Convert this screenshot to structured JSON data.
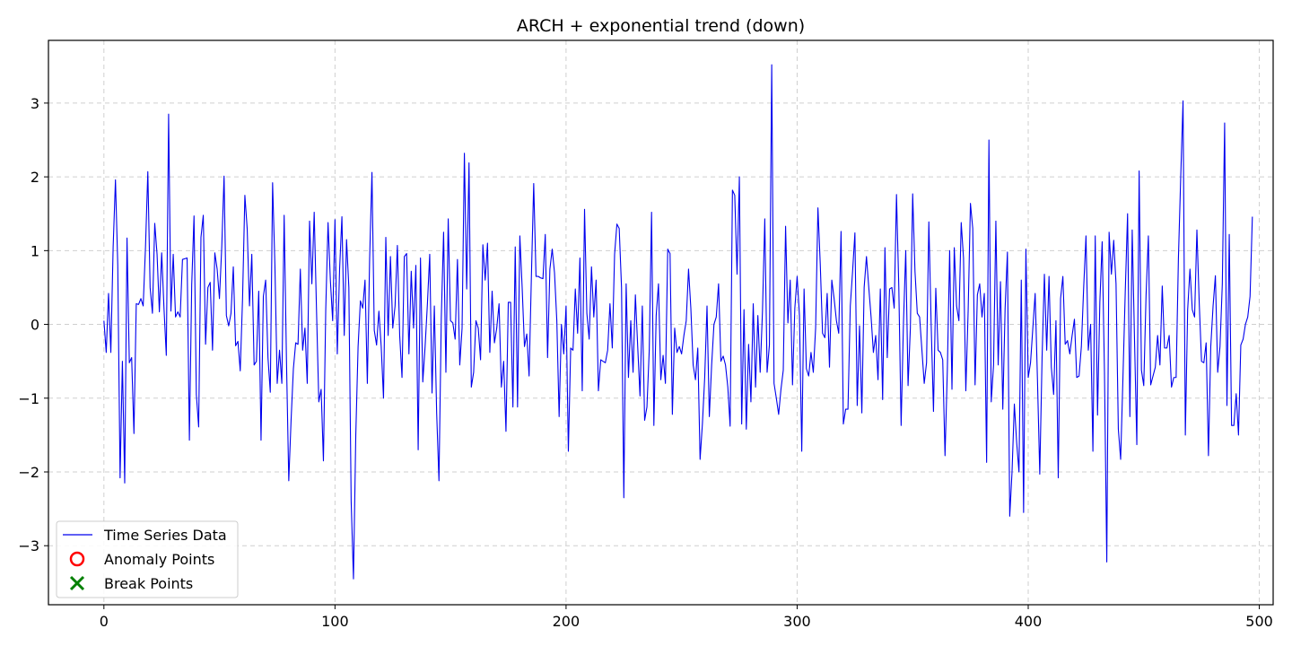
{
  "chart_data": {
    "type": "line",
    "title": "ARCH + exponential trend (down)",
    "xlabel": "",
    "ylabel": "",
    "xlim": [
      -24,
      506
    ],
    "ylim": [
      -3.8,
      3.85
    ],
    "xticks": [
      0,
      100,
      200,
      300,
      400,
      500
    ],
    "yticks": [
      -3,
      -2,
      -1,
      0,
      1,
      2,
      3
    ],
    "xtick_labels": [
      "0",
      "100",
      "200",
      "300",
      "400",
      "500"
    ],
    "ytick_labels": [
      "−3",
      "−2",
      "−1",
      "0",
      "1",
      "2",
      "3"
    ],
    "grid": true,
    "legend_position": "lower-left",
    "colors": {
      "series": "#0000ee",
      "anomaly": "#ff0000",
      "break": "#008000"
    },
    "series": [
      {
        "name": "Time Series Data",
        "y": [
          0.05,
          -0.38,
          0.42,
          -0.38,
          1.05,
          1.96,
          0.8,
          -2.08,
          -0.5,
          -2.15,
          1.17,
          -0.52,
          -0.45,
          -1.48,
          0.28,
          0.27,
          0.35,
          0.25,
          1.05,
          2.07,
          0.5,
          0.15,
          1.37,
          0.95,
          0.17,
          0.97,
          0.22,
          -0.42,
          2.85,
          0.18,
          0.95,
          0.1,
          0.17,
          0.1,
          0.88,
          0.89,
          0.9,
          -1.57,
          0.54,
          1.47,
          -0.95,
          -1.39,
          1.18,
          1.48,
          -0.27,
          0.5,
          0.57,
          -0.35,
          0.97,
          0.75,
          0.35,
          1.05,
          2.01,
          0.12,
          -0.02,
          0.15,
          0.78,
          -0.29,
          -0.23,
          -0.63,
          0.35,
          1.75,
          1.3,
          0.25,
          0.95,
          -0.55,
          -0.5,
          0.45,
          -1.57,
          0.38,
          0.6,
          -0.45,
          -0.92,
          1.92,
          0.8,
          -0.8,
          -0.35,
          -0.8,
          1.48,
          -0.48,
          -2.12,
          -1.3,
          -0.6,
          -0.25,
          -0.27,
          0.75,
          -0.35,
          -0.05,
          -0.8,
          1.4,
          0.55,
          1.52,
          0.2,
          -1.05,
          -0.88,
          -1.85,
          0.2,
          1.38,
          0.6,
          0.05,
          1.42,
          -0.4,
          0.75,
          1.46,
          -0.15,
          1.15,
          0.5,
          -2.4,
          -3.45,
          -1.5,
          -0.3,
          0.32,
          0.22,
          0.6,
          -0.8,
          0.9,
          2.06,
          -0.08,
          -0.28,
          0.18,
          -0.3,
          -1.0,
          1.18,
          -0.15,
          0.92,
          -0.05,
          0.25,
          1.07,
          -0.15,
          -0.72,
          0.92,
          0.96,
          -0.4,
          0.72,
          -0.05,
          0.8,
          -1.7,
          0.9,
          -0.78,
          -0.3,
          0.28,
          0.95,
          -0.93,
          0.25,
          -1.2,
          -2.12,
          0.08,
          1.25,
          -0.65,
          1.43,
          0.05,
          0.02,
          -0.2,
          0.88,
          -0.55,
          -0.05,
          2.32,
          0.48,
          2.19,
          -0.85,
          -0.65,
          0.05,
          -0.05,
          -0.48,
          1.08,
          0.6,
          1.1,
          -0.38,
          0.45,
          -0.25,
          -0.05,
          0.28,
          -0.85,
          -0.5,
          -1.45,
          0.3,
          0.3,
          -1.12,
          1.05,
          -1.12,
          1.2,
          0.5,
          -0.3,
          -0.13,
          -0.7,
          0.65,
          1.91,
          0.65,
          0.65,
          0.63,
          0.62,
          1.22,
          -0.45,
          0.75,
          1.02,
          0.7,
          0.05,
          -1.25,
          0.0,
          -0.4,
          0.25,
          -1.72,
          -0.32,
          -0.35,
          0.48,
          -0.12,
          0.9,
          -0.9,
          1.56,
          0.15,
          -0.2,
          0.78,
          0.1,
          0.6,
          -0.9,
          -0.48,
          -0.5,
          -0.52,
          -0.35,
          0.28,
          -0.32,
          0.95,
          1.36,
          1.3,
          0.5,
          -2.35,
          0.55,
          -0.72,
          0.05,
          -0.65,
          0.4,
          -0.3,
          -0.97,
          0.25,
          -1.3,
          -1.12,
          -0.35,
          1.52,
          -1.37,
          0.12,
          0.55,
          -0.75,
          -0.42,
          -0.8,
          1.02,
          0.96,
          -1.22,
          -0.05,
          -0.38,
          -0.3,
          -0.4,
          -0.15,
          0.05,
          0.75,
          0.22,
          -0.55,
          -0.75,
          -0.32,
          -1.83,
          -1.35,
          -0.72,
          0.25,
          -1.25,
          -0.55,
          0.0,
          0.1,
          0.55,
          -0.5,
          -0.43,
          -0.55,
          -0.85,
          -1.38,
          1.82,
          1.75,
          0.68,
          2.0,
          -1.35,
          0.2,
          -1.42,
          -0.27,
          -1.05,
          0.28,
          -0.85,
          0.12,
          -0.65,
          0.18,
          1.43,
          -0.65,
          -0.28,
          3.52,
          -0.8,
          -1.0,
          -1.22,
          -0.88,
          -0.62,
          1.33,
          0.02,
          0.6,
          -0.82,
          0.22,
          0.65,
          0.12,
          -1.72,
          0.48,
          -0.6,
          -0.7,
          -0.38,
          -0.65,
          -0.05,
          1.58,
          0.82,
          -0.12,
          -0.18,
          0.42,
          -0.58,
          0.6,
          0.35,
          0.05,
          -0.12,
          1.26,
          -1.35,
          -1.15,
          -1.15,
          0.25,
          0.72,
          1.24,
          -1.1,
          -0.02,
          -1.2,
          0.5,
          0.92,
          0.5,
          0.1,
          -0.38,
          -0.15,
          -0.75,
          0.48,
          -1.02,
          1.04,
          -0.45,
          0.48,
          0.5,
          0.22,
          1.76,
          0.5,
          -1.37,
          0.0,
          1.0,
          -0.83,
          -0.05,
          1.77,
          0.72,
          0.15,
          0.1,
          -0.35,
          -0.8,
          -0.52,
          1.39,
          0.0,
          -1.18,
          0.49,
          -0.35,
          -0.38,
          -0.48,
          -1.78,
          -0.62,
          1.0,
          -0.88,
          1.04,
          0.25,
          0.05,
          1.38,
          0.9,
          -0.9,
          0.18,
          1.64,
          1.3,
          -0.82,
          0.4,
          0.55,
          0.1,
          0.42,
          -1.87,
          2.5,
          -1.05,
          -0.55,
          1.4,
          -0.55,
          0.58,
          -1.15,
          0.22,
          0.98,
          -2.6,
          -2.0,
          -1.08,
          -1.6,
          -2.0,
          0.6,
          -2.55,
          1.02,
          -0.72,
          -0.52,
          -0.05,
          0.42,
          -0.75,
          -2.03,
          -0.45,
          0.68,
          -0.35,
          0.65,
          -0.58,
          -0.95,
          0.05,
          -2.08,
          0.35,
          0.65,
          -0.27,
          -0.22,
          -0.4,
          -0.15,
          0.07,
          -0.72,
          -0.7,
          -0.3,
          0.5,
          1.2,
          -0.35,
          0.0,
          -1.72,
          1.2,
          -1.23,
          0.3,
          1.12,
          -0.65,
          -3.22,
          1.25,
          0.68,
          1.14,
          0.55,
          -1.42,
          -1.83,
          -0.72,
          0.45,
          1.5,
          -1.25,
          1.28,
          -0.2,
          -1.63,
          2.08,
          -0.62,
          -0.83,
          0.4,
          1.2,
          -0.82,
          -0.7,
          -0.58,
          -0.15,
          -0.55,
          0.52,
          -0.32,
          -0.32,
          -0.15,
          -0.85,
          -0.72,
          -0.72,
          0.9,
          2.0,
          3.03,
          -1.5,
          0.2,
          0.75,
          0.2,
          0.1,
          1.28,
          0.3,
          -0.5,
          -0.52,
          -0.25,
          -1.78,
          -0.3,
          0.25,
          0.66,
          -0.65,
          -0.3,
          0.55,
          2.73,
          -1.1,
          1.22,
          -1.37,
          -1.37,
          -0.94,
          -1.5,
          -0.28,
          -0.2,
          0.0,
          0.1,
          0.38,
          1.46
        ]
      }
    ],
    "legend": [
      {
        "label": "Time Series Data",
        "marker": "line",
        "color": "#0000ee"
      },
      {
        "label": "Anomaly Points",
        "marker": "circle",
        "color": "#ff0000"
      },
      {
        "label": "Break Points",
        "marker": "x",
        "color": "#008000"
      }
    ]
  }
}
